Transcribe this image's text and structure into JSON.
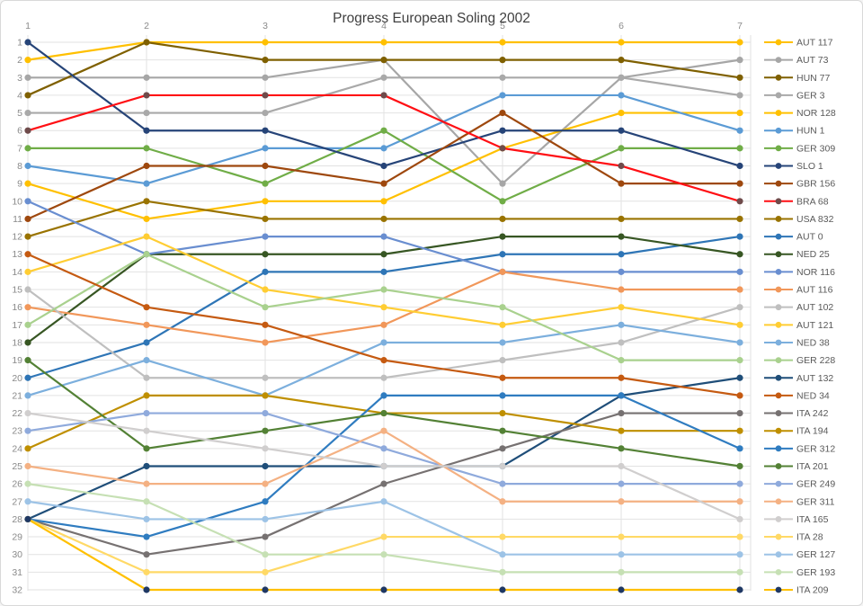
{
  "window": {
    "background": "#ffffff",
    "border_color": "#d9d9d9",
    "gridline_color": "#e2e2e2",
    "axis_text_color": "#8a8a8a",
    "legend_text_color": "#595959",
    "title_color": "#3f3f3f"
  },
  "chart_data": {
    "type": "line",
    "subtype": "bump-chart-rank-progression",
    "title": "Progress European Soling 2002",
    "xlabel": "",
    "ylabel": "",
    "x": [
      "1",
      "2",
      "3",
      "4",
      "5",
      "6",
      "7"
    ],
    "x_axis_position": "top",
    "y_axis": {
      "min": 1,
      "max": 32,
      "inverted": true,
      "ticks": [
        1,
        2,
        3,
        4,
        5,
        6,
        7,
        8,
        9,
        10,
        11,
        12,
        13,
        14,
        15,
        16,
        17,
        18,
        19,
        20,
        21,
        22,
        23,
        24,
        25,
        26,
        27,
        28,
        29,
        30,
        31,
        32
      ]
    },
    "grid": true,
    "legend_position": "right",
    "series": [
      {
        "name": "AUT 117",
        "color": "#FFC000",
        "values": [
          2,
          1,
          1,
          1,
          1,
          1,
          1
        ]
      },
      {
        "name": "AUT 73",
        "color": "#A6A6A6",
        "values": [
          3,
          3,
          3,
          2,
          9,
          3,
          2
        ]
      },
      {
        "name": "HUN 77",
        "color": "#7F6000",
        "values": [
          4,
          1,
          2,
          2,
          2,
          2,
          3
        ]
      },
      {
        "name": "GER 3",
        "color": "#A9A9A9",
        "values": [
          5,
          5,
          5,
          3,
          3,
          3,
          4
        ]
      },
      {
        "name": "NOR 128",
        "color": "#FFC000",
        "values": [
          9,
          11,
          10,
          10,
          7,
          5,
          5
        ]
      },
      {
        "name": "HUN 1",
        "color": "#5B9BD5",
        "values": [
          8,
          9,
          7,
          7,
          4,
          4,
          6
        ]
      },
      {
        "name": "GER 309",
        "color": "#70AD47",
        "values": [
          7,
          7,
          9,
          6,
          10,
          7,
          7
        ]
      },
      {
        "name": "SLO 1",
        "color": "#264478",
        "values": [
          1,
          6,
          6,
          8,
          6,
          6,
          8
        ]
      },
      {
        "name": "GBR 156",
        "color": "#9E480E",
        "values": [
          11,
          8,
          8,
          9,
          5,
          9,
          9
        ]
      },
      {
        "name": "BRA 68",
        "color": "#FF0F14",
        "marker_color": "#6F4B4B",
        "values": [
          6,
          4,
          4,
          4,
          7,
          8,
          10
        ]
      },
      {
        "name": "USA 832",
        "color": "#997300",
        "values": [
          12,
          10,
          11,
          11,
          11,
          11,
          11
        ]
      },
      {
        "name": "AUT 0",
        "color": "#2E75B6",
        "values": [
          20,
          18,
          14,
          14,
          13,
          13,
          12
        ]
      },
      {
        "name": "NED 25",
        "color": "#375623",
        "values": [
          18,
          13,
          13,
          13,
          12,
          12,
          13
        ]
      },
      {
        "name": "NOR 116",
        "color": "#698ED0",
        "values": [
          10,
          13,
          12,
          12,
          14,
          14,
          14
        ]
      },
      {
        "name": "AUT 116",
        "color": "#F1975A",
        "values": [
          16,
          17,
          18,
          17,
          14,
          15,
          15
        ]
      },
      {
        "name": "AUT 102",
        "color": "#BFBFBF",
        "values": [
          15,
          20,
          20,
          20,
          19,
          18,
          16
        ]
      },
      {
        "name": "AUT 121",
        "color": "#FFCD33",
        "values": [
          14,
          12,
          15,
          16,
          17,
          16,
          17
        ]
      },
      {
        "name": "NED 38",
        "color": "#7CAFDD",
        "values": [
          21,
          19,
          21,
          18,
          18,
          17,
          18
        ]
      },
      {
        "name": "GER 228",
        "color": "#A9D18E",
        "values": [
          17,
          13,
          16,
          15,
          16,
          19,
          19
        ]
      },
      {
        "name": "AUT 132",
        "color": "#1F4E79",
        "values": [
          28,
          25,
          25,
          25,
          25,
          21,
          20
        ]
      },
      {
        "name": "NED 34",
        "color": "#C55A11",
        "values": [
          13,
          16,
          17,
          19,
          20,
          20,
          21
        ]
      },
      {
        "name": "ITA 242",
        "color": "#767171",
        "values": [
          28,
          30,
          29,
          26,
          24,
          22,
          22
        ]
      },
      {
        "name": "ITA 194",
        "color": "#BF8F00",
        "values": [
          24,
          21,
          21,
          22,
          22,
          23,
          23
        ]
      },
      {
        "name": "GER 312",
        "color": "#2F7CC0",
        "values": [
          28,
          29,
          27,
          21,
          21,
          21,
          24
        ]
      },
      {
        "name": "ITA 201",
        "color": "#538135",
        "values": [
          19,
          24,
          23,
          22,
          23,
          24,
          25
        ]
      },
      {
        "name": "GER 249",
        "color": "#8FAADC",
        "values": [
          23,
          22,
          22,
          24,
          26,
          26,
          26
        ]
      },
      {
        "name": "GER 311",
        "color": "#F4B183",
        "values": [
          25,
          26,
          26,
          23,
          27,
          27,
          27
        ]
      },
      {
        "name": "ITA 165",
        "color": "#D0CECE",
        "values": [
          22,
          23,
          24,
          25,
          25,
          25,
          28
        ]
      },
      {
        "name": "ITA 28",
        "color": "#FFD966",
        "values": [
          28,
          31,
          31,
          29,
          29,
          29,
          29
        ]
      },
      {
        "name": "GER 127",
        "color": "#9DC3E6",
        "values": [
          27,
          28,
          28,
          27,
          30,
          30,
          30
        ]
      },
      {
        "name": "GER 193",
        "color": "#C6E0B4",
        "values": [
          26,
          27,
          30,
          30,
          31,
          31,
          31
        ]
      },
      {
        "name": "ITA 209",
        "color": "#FFC000",
        "marker_color": "#1F3864",
        "values": [
          28,
          32,
          32,
          32,
          32,
          32,
          32
        ]
      }
    ]
  }
}
